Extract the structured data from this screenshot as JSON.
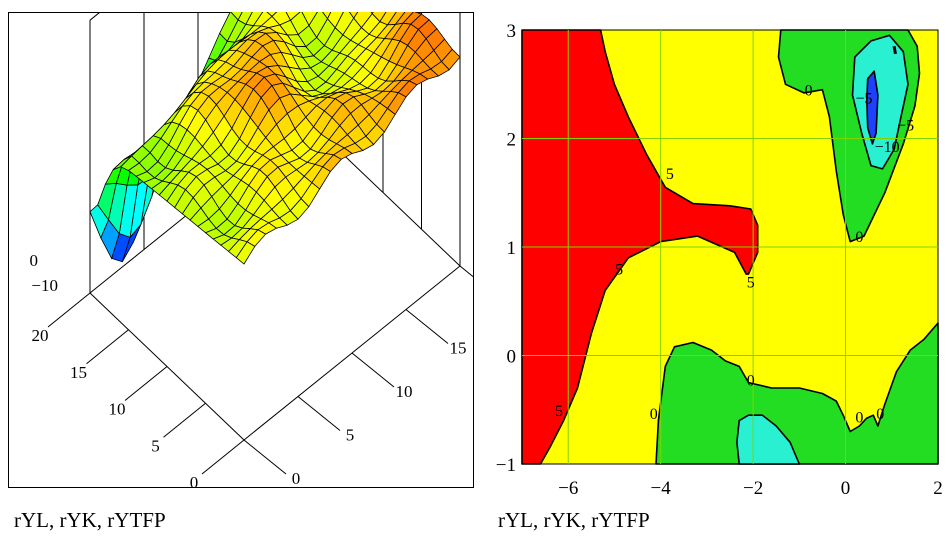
{
  "chart_data": [
    {
      "type": "surface3d",
      "caption": "rYL, rYK, rYTFP",
      "axes": {
        "x_ticks": [
          "0",
          "5",
          "10",
          "15",
          "20"
        ],
        "y_ticks": [
          "20",
          "15",
          "10",
          "5",
          "0"
        ],
        "z_ticks": [
          "0",
          "−10"
        ]
      },
      "grid_size": [
        21,
        21
      ],
      "zlim": [
        -14,
        8
      ],
      "colormap": "rainbow",
      "box": true
    },
    {
      "type": "contour",
      "caption": "rYL, rYK, rYTFP",
      "xlim": [
        -7,
        2
      ],
      "ylim": [
        -1,
        3
      ],
      "x_ticks": [
        "−6",
        "−4",
        "−2",
        "0",
        "2"
      ],
      "y_ticks": [
        "3",
        "2",
        "1",
        "0",
        "−1"
      ],
      "x_tick_values": [
        -6,
        -4,
        -2,
        0,
        2
      ],
      "y_tick_values": [
        3,
        2,
        1,
        0,
        -1
      ],
      "levels": [
        -10,
        -5,
        0,
        5
      ],
      "level_colors": {
        "below_-10": "#1e40ff",
        "-10_to_-5": "#28f0d0",
        "-5_to_0": "#22dd22",
        "0_to_5": "#ffff00",
        "above_5": "#ff0000"
      },
      "grid": true,
      "grid_color": "#7fd400",
      "contour_labels": [
        {
          "text": "0",
          "x": -0.8,
          "y": 2.45
        },
        {
          "text": "−5",
          "x": 0.4,
          "y": 2.38
        },
        {
          "text": "−5",
          "x": 1.3,
          "y": 2.13
        },
        {
          "text": "−10",
          "x": 0.9,
          "y": 1.93
        },
        {
          "text": "5",
          "x": -3.8,
          "y": 1.68
        },
        {
          "text": "0",
          "x": 0.3,
          "y": 1.1
        },
        {
          "text": "5",
          "x": -4.9,
          "y": 0.8
        },
        {
          "text": "5",
          "x": -2.05,
          "y": 0.68
        },
        {
          "text": "0",
          "x": -2.05,
          "y": -0.22
        },
        {
          "text": "0",
          "x": -4.15,
          "y": -0.53
        },
        {
          "text": "0",
          "x": 0.3,
          "y": -0.56
        },
        {
          "text": "0",
          "x": 0.75,
          "y": -0.53
        },
        {
          "text": "5",
          "x": -6.2,
          "y": -0.5
        }
      ]
    }
  ]
}
